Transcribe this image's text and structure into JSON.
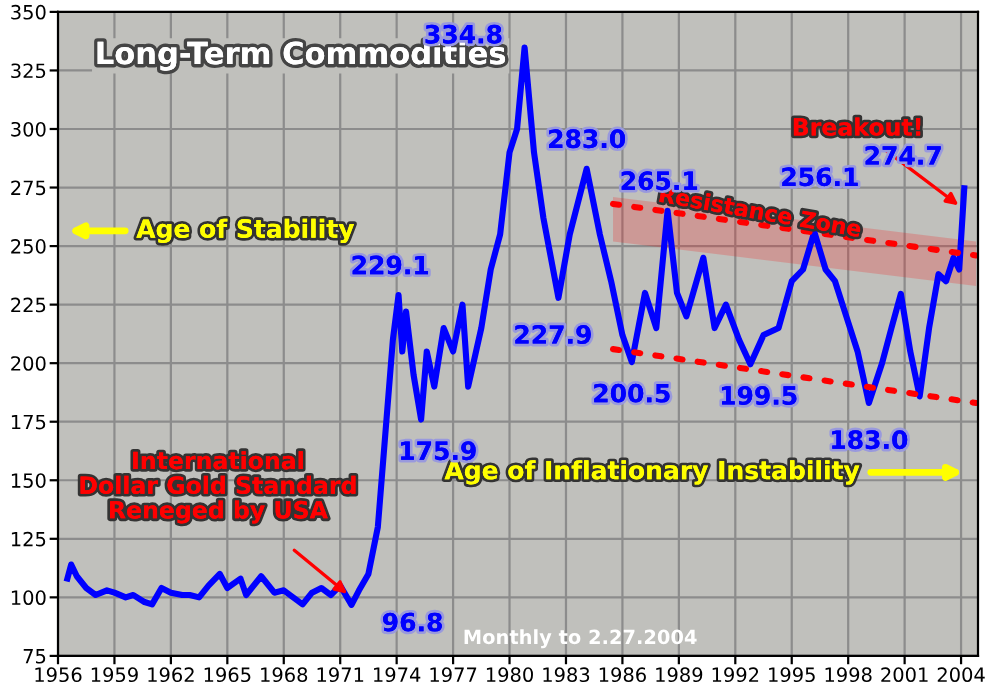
{
  "chart_data": {
    "type": "line",
    "title": "Long-Term Commodities",
    "series": [
      {
        "color": "#0000ff",
        "x": [
          1956.5,
          1956.7,
          1957.0,
          1957.5,
          1958.0,
          1958.6,
          1959.0,
          1959.6,
          1960.0,
          1960.6,
          1961.0,
          1961.5,
          1962.0,
          1962.6,
          1963.0,
          1963.5,
          1964.0,
          1964.6,
          1965.0,
          1965.7,
          1966.0,
          1966.8,
          1967.5,
          1968.0,
          1968.5,
          1969.0,
          1969.5,
          1970.0,
          1970.5,
          1971.0,
          1971.6,
          1972.0,
          1972.5,
          1973.0,
          1973.4,
          1973.8,
          1974.1,
          1974.3,
          1974.5,
          1974.9,
          1975.3,
          1975.6,
          1976.0,
          1976.5,
          1977.0,
          1977.5,
          1977.8,
          1978.5,
          1979.0,
          1979.5,
          1980.0,
          1980.4,
          1980.8,
          1981.3,
          1981.8,
          1982.6,
          1983.2,
          1984.1,
          1984.8,
          1985.4,
          1986.0,
          1986.5,
          1987.2,
          1987.8,
          1988.4,
          1988.9,
          1989.4,
          1990.3,
          1990.9,
          1991.5,
          1992.2,
          1992.8,
          1993.5,
          1994.3,
          1995.0,
          1995.6,
          1996.2,
          1996.8,
          1997.3,
          1997.9,
          1998.5,
          1999.1,
          1999.8,
          2000.3,
          2000.8,
          2001.3,
          2001.8,
          2002.3,
          2002.8,
          2003.2,
          2003.6,
          2003.9,
          2004.17
        ],
        "values": [
          108,
          114,
          109,
          104,
          101,
          103,
          102,
          100,
          101,
          98,
          97,
          104,
          102,
          101,
          101,
          100,
          105,
          110,
          104,
          108,
          101,
          109,
          102,
          103,
          100,
          97,
          102,
          104,
          101,
          105,
          96.8,
          103,
          110,
          130,
          170,
          210,
          229.1,
          205,
          222,
          195,
          175.9,
          205,
          190,
          215,
          205,
          225,
          190,
          215,
          240,
          255,
          290,
          300,
          334.8,
          290,
          262,
          227.9,
          255,
          283.0,
          255,
          235,
          212,
          200.5,
          230,
          215,
          265.1,
          230,
          220,
          245,
          215,
          225,
          210,
          199.5,
          212,
          215,
          235,
          240,
          256.1,
          240,
          235,
          220,
          205,
          183.0,
          200,
          215,
          229.6,
          205,
          185.8,
          215,
          238,
          235,
          245,
          240,
          274.7
        ]
      },
      {
        "color": "#ff0000",
        "line_style": "dotted",
        "x": [
          1985.5,
          2004.8
        ],
        "values": [
          268,
          246
        ],
        "lower": [
          252,
          233
        ],
        "upper": [
          271,
          252
        ]
      },
      {
        "color": "#ff0000",
        "line_style": "dotted",
        "x": [
          1985.5,
          2004.8
        ],
        "values": [
          206,
          183
        ]
      }
    ],
    "annotations": [
      "Age of Stability",
      "Age of Inflationary Instability",
      "Monthly to 2.27.2004",
      {
        "text": "International\nDollar Gold Standard\nReneged by USA",
        "x": 1971.6,
        "y": 100
      },
      {
        "text": "Breakout!",
        "x": 2004.1,
        "y": 266
      },
      "Resistance Zone",
      {
        "text": "334.8",
        "x": 1980.8,
        "y": 334.8
      },
      {
        "text": "229.1",
        "x": 1974.1,
        "y": 229.1
      },
      {
        "text": "175.9",
        "x": 1975.3,
        "y": 175.9
      },
      {
        "text": "96.8",
        "x": 1971.6,
        "y": 96.8
      },
      {
        "text": "283.0",
        "x": 1984.1,
        "y": 283.0
      },
      {
        "text": "227.9",
        "x": 1982.6,
        "y": 227.9
      },
      {
        "text": "265.1",
        "x": 1988.4,
        "y": 265.1
      },
      {
        "text": "200.5",
        "x": 1986.5,
        "y": 200.5
      },
      {
        "text": "199.5",
        "x": 1992.8,
        "y": 199.5
      },
      {
        "text": "256.1",
        "x": 1996.2,
        "y": 256.1
      },
      {
        "text": "183.0",
        "x": 1999.1,
        "y": 183.0
      },
      {
        "text": "274.7",
        "x": 2004.17,
        "y": 274.7
      }
    ],
    "xlim": [
      1956,
      2004.9
    ],
    "xticks": [
      1956,
      1959,
      1962,
      1965,
      1968,
      1971,
      1974,
      1977,
      1980,
      1983,
      1986,
      1989,
      1992,
      1995,
      1998,
      2001,
      2004
    ],
    "ylim": [
      75,
      350
    ],
    "yticks": [
      75,
      100,
      125,
      150,
      175,
      200,
      225,
      250,
      275,
      300,
      325,
      350
    ],
    "grid": true
  }
}
